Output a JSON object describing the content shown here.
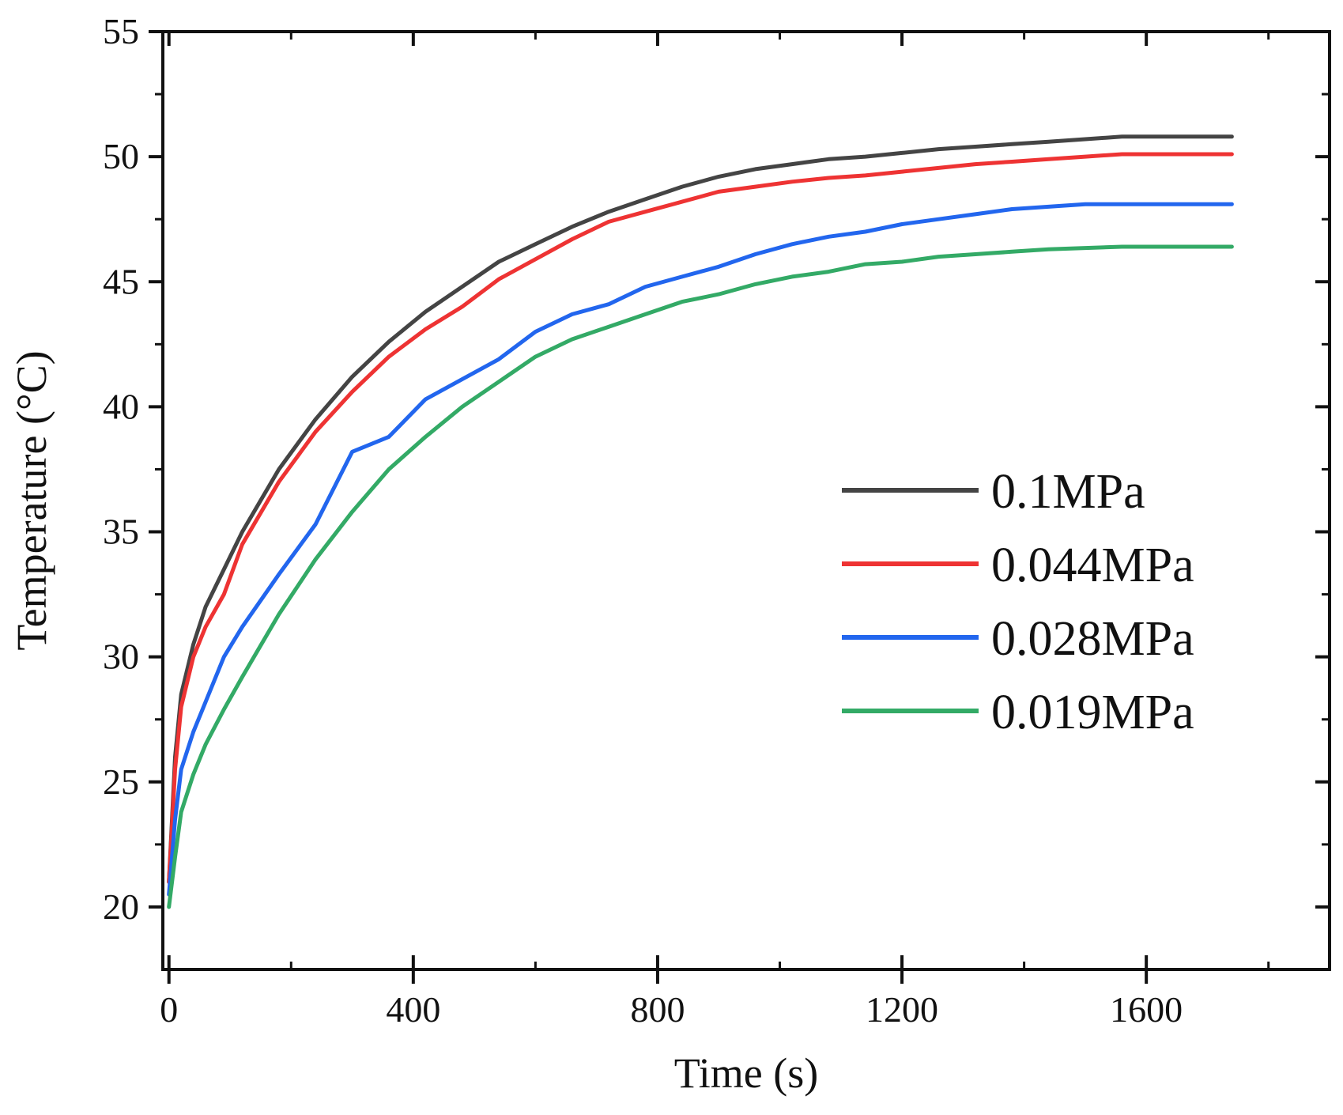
{
  "chart_data": {
    "type": "line",
    "title": "",
    "xlabel": "Time (s)",
    "ylabel": "Temperature (°C)",
    "xlim": [
      -10,
      1900
    ],
    "ylim": [
      17.5,
      55
    ],
    "xticks": [
      0,
      400,
      800,
      1200,
      1600
    ],
    "yticks": [
      20,
      25,
      30,
      35,
      40,
      45,
      50,
      55
    ],
    "grid": false,
    "legend_position": "center-right",
    "series": [
      {
        "name": "0.1MPa",
        "color": "#444444",
        "x": [
          0,
          10,
          20,
          40,
          60,
          90,
          120,
          180,
          240,
          300,
          360,
          420,
          480,
          540,
          600,
          660,
          720,
          780,
          840,
          900,
          960,
          1020,
          1080,
          1140,
          1200,
          1260,
          1320,
          1380,
          1440,
          1500,
          1560,
          1620,
          1680,
          1740
        ],
        "y": [
          21.0,
          26.0,
          28.5,
          30.5,
          32.0,
          33.5,
          35.0,
          37.5,
          39.5,
          41.2,
          42.6,
          43.8,
          44.8,
          45.8,
          46.5,
          47.2,
          47.8,
          48.3,
          48.8,
          49.2,
          49.5,
          49.7,
          49.9,
          50.0,
          50.15,
          50.3,
          50.4,
          50.5,
          50.6,
          50.7,
          50.8,
          50.8,
          50.8,
          50.8
        ]
      },
      {
        "name": "0.044MPa",
        "color": "#ee3333",
        "x": [
          0,
          10,
          20,
          40,
          60,
          90,
          120,
          180,
          240,
          300,
          360,
          420,
          480,
          540,
          600,
          660,
          720,
          780,
          840,
          900,
          960,
          1020,
          1080,
          1140,
          1200,
          1260,
          1320,
          1380,
          1440,
          1500,
          1560,
          1620,
          1680,
          1740
        ],
        "y": [
          21.0,
          25.5,
          28.0,
          30.0,
          31.2,
          32.5,
          34.5,
          37.0,
          39.0,
          40.6,
          42.0,
          43.1,
          44.0,
          45.1,
          45.9,
          46.7,
          47.4,
          47.8,
          48.2,
          48.6,
          48.8,
          49.0,
          49.15,
          49.25,
          49.4,
          49.55,
          49.7,
          49.8,
          49.9,
          50.0,
          50.1,
          50.1,
          50.1,
          50.1
        ]
      },
      {
        "name": "0.028MPa",
        "color": "#2266ee",
        "x": [
          0,
          10,
          20,
          40,
          60,
          90,
          120,
          180,
          240,
          300,
          360,
          420,
          480,
          540,
          600,
          660,
          720,
          780,
          840,
          900,
          960,
          1020,
          1080,
          1140,
          1200,
          1260,
          1320,
          1380,
          1440,
          1500,
          1560,
          1620,
          1680,
          1740
        ],
        "y": [
          20.5,
          23.5,
          25.5,
          27.0,
          28.2,
          30.0,
          31.2,
          33.3,
          35.3,
          38.2,
          38.8,
          40.3,
          41.1,
          41.9,
          43.0,
          43.7,
          44.1,
          44.8,
          45.2,
          45.6,
          46.1,
          46.5,
          46.8,
          47.0,
          47.3,
          47.5,
          47.7,
          47.9,
          48.0,
          48.1,
          48.1,
          48.1,
          48.1,
          48.1
        ]
      },
      {
        "name": "0.019MPa",
        "color": "#33aa66",
        "x": [
          0,
          10,
          20,
          40,
          60,
          90,
          120,
          180,
          240,
          300,
          360,
          420,
          480,
          540,
          600,
          660,
          720,
          780,
          840,
          900,
          960,
          1020,
          1080,
          1140,
          1200,
          1260,
          1320,
          1380,
          1440,
          1500,
          1560,
          1620,
          1680,
          1740
        ],
        "y": [
          20.0,
          22.0,
          23.8,
          25.3,
          26.5,
          27.9,
          29.2,
          31.7,
          33.9,
          35.8,
          37.5,
          38.8,
          40.0,
          41.0,
          42.0,
          42.7,
          43.2,
          43.7,
          44.2,
          44.5,
          44.9,
          45.2,
          45.4,
          45.7,
          45.8,
          46.0,
          46.1,
          46.2,
          46.3,
          46.35,
          46.4,
          46.4,
          46.4,
          46.4
        ]
      }
    ]
  }
}
